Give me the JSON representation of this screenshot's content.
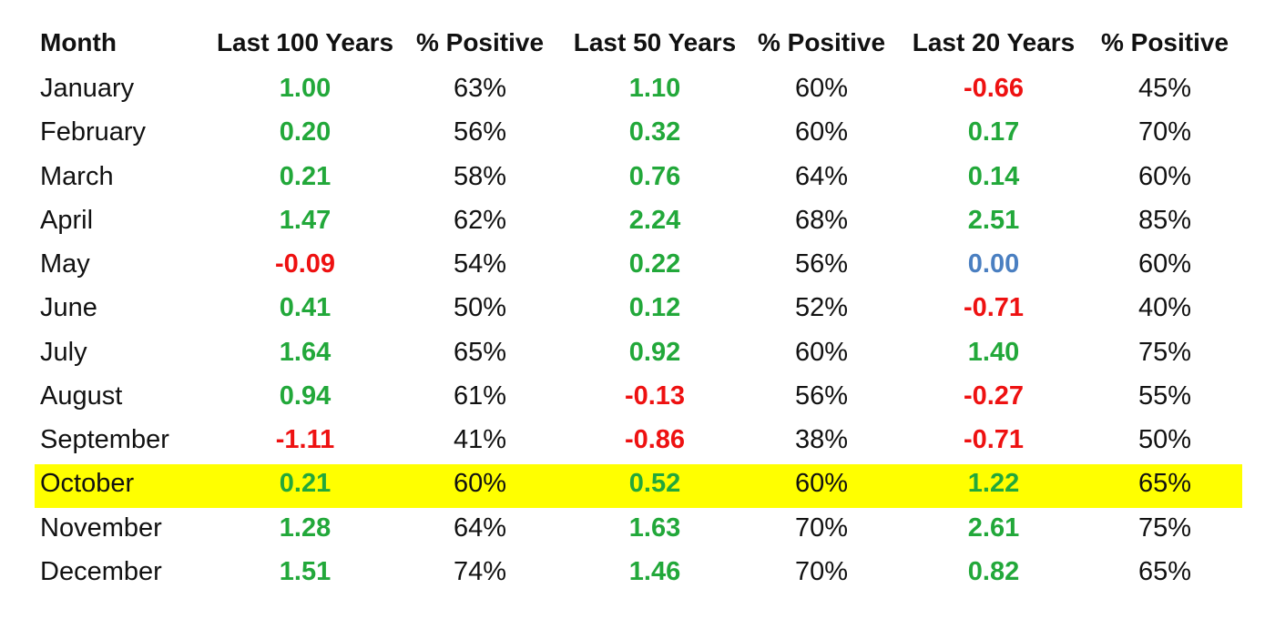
{
  "chart_data": {
    "type": "table",
    "columns": [
      "Month",
      "Last 100 Years",
      "% Positive",
      "Last 50 Years",
      "% Positive",
      "Last 20 Years",
      "% Positive"
    ],
    "rows": [
      {
        "month": "January",
        "last100": "1.00",
        "pct100": "63%",
        "last50": "1.10",
        "pct50": "60%",
        "last20": "-0.66",
        "pct20": "45%"
      },
      {
        "month": "February",
        "last100": "0.20",
        "pct100": "56%",
        "last50": "0.32",
        "pct50": "60%",
        "last20": "0.17",
        "pct20": "70%"
      },
      {
        "month": "March",
        "last100": "0.21",
        "pct100": "58%",
        "last50": "0.76",
        "pct50": "64%",
        "last20": "0.14",
        "pct20": "60%"
      },
      {
        "month": "April",
        "last100": "1.47",
        "pct100": "62%",
        "last50": "2.24",
        "pct50": "68%",
        "last20": "2.51",
        "pct20": "85%"
      },
      {
        "month": "May",
        "last100": "-0.09",
        "pct100": "54%",
        "last50": "0.22",
        "pct50": "56%",
        "last20": "0.00",
        "pct20": "60%"
      },
      {
        "month": "June",
        "last100": "0.41",
        "pct100": "50%",
        "last50": "0.12",
        "pct50": "52%",
        "last20": "-0.71",
        "pct20": "40%"
      },
      {
        "month": "July",
        "last100": "1.64",
        "pct100": "65%",
        "last50": "0.92",
        "pct50": "60%",
        "last20": "1.40",
        "pct20": "75%"
      },
      {
        "month": "August",
        "last100": "0.94",
        "pct100": "61%",
        "last50": "-0.13",
        "pct50": "56%",
        "last20": "-0.27",
        "pct20": "55%"
      },
      {
        "month": "September",
        "last100": "-1.11",
        "pct100": "41%",
        "last50": "-0.86",
        "pct50": "38%",
        "last20": "-0.71",
        "pct20": "50%"
      },
      {
        "month": "October",
        "last100": "0.21",
        "pct100": "60%",
        "last50": "0.52",
        "pct50": "60%",
        "last20": "1.22",
        "pct20": "65%"
      },
      {
        "month": "November",
        "last100": "1.28",
        "pct100": "64%",
        "last50": "1.63",
        "pct50": "70%",
        "last20": "2.61",
        "pct20": "75%"
      },
      {
        "month": "December",
        "last100": "1.51",
        "pct100": "74%",
        "last50": "1.46",
        "pct50": "70%",
        "last20": "0.82",
        "pct20": "65%"
      }
    ],
    "highlighted_row": "October",
    "colors": {
      "positive": "#22a83a",
      "negative": "#ee1111",
      "zero": "#4a7fc1",
      "highlight": "#ffff00",
      "text": "#111111"
    }
  }
}
